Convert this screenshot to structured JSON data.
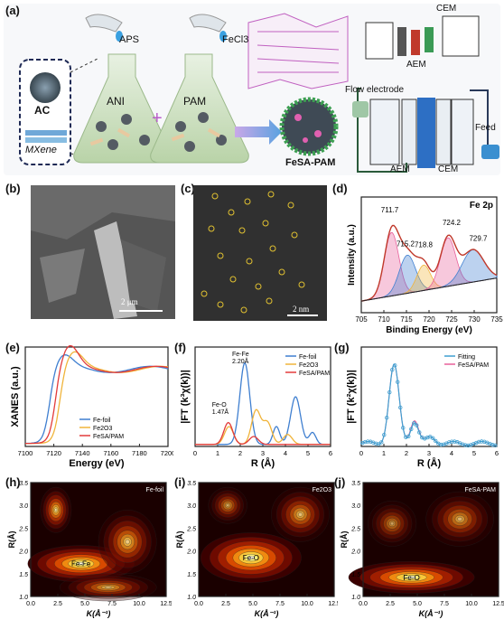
{
  "panels": {
    "a": "(a)",
    "b": "(b)",
    "c": "(c)",
    "d": "(d)",
    "e": "(e)",
    "f": "(f)",
    "g": "(g)",
    "h": "(h)",
    "i": "(i)",
    "j": "(j)"
  },
  "schematic": {
    "aps": "APS",
    "fecl3": "FeCl3",
    "ac": "AC",
    "mxene": "MXene",
    "ani": "ANI",
    "plus": "+",
    "pam": "PAM",
    "product": "FeSA-PAM",
    "cem_top": "CEM",
    "aem_top": "AEM",
    "flow_electrode": "Flow electrode",
    "feed": "Feed",
    "aem_bottom": "AEM",
    "cem_bottom": "CEM"
  },
  "sem_b": {
    "scale": "2 μm"
  },
  "haadf_c": {
    "scale": "2 nm"
  },
  "colors": {
    "red": "#e23b3b",
    "blue": "#3f7fd0",
    "orange": "#f0b43a",
    "pink": "#e8609b"
  },
  "chart_data": [
    {
      "id": "d",
      "type": "line",
      "title": "Fe 2p",
      "xlabel": "Binding Energy (eV)",
      "ylabel": "Intensity (a.u.)",
      "xlim": [
        735,
        705
      ],
      "xticks": [
        "705",
        "710",
        "715",
        "720",
        "725",
        "730",
        "735"
      ],
      "peak_labels": [
        {
          "text": "711.7",
          "x": 711.7
        },
        {
          "text": "715.2",
          "x": 715.2
        },
        {
          "text": "718.8",
          "x": 718.8
        },
        {
          "text": "724.2",
          "x": 724.2
        },
        {
          "text": "729.7",
          "x": 729.7
        }
      ]
    },
    {
      "id": "e",
      "type": "line",
      "xlabel": "Energy (eV)",
      "ylabel": "XANES (a.u.)",
      "xlim": [
        7100,
        7200
      ],
      "xticks": [
        "7100",
        "7120",
        "7140",
        "7160",
        "7180",
        "7200"
      ],
      "series": [
        {
          "name": "Fe-foil",
          "color": "#3f7fd0"
        },
        {
          "name": "Fe2O3",
          "color": "#f0b43a"
        },
        {
          "name": "FeSA/PAM",
          "color": "#e23b3b"
        }
      ]
    },
    {
      "id": "f",
      "type": "line",
      "xlabel": "R (Å)",
      "ylabel": "|FT (k³χ(k))|",
      "xlim": [
        0,
        6
      ],
      "xticks": [
        "0",
        "1",
        "2",
        "3",
        "4",
        "5",
        "6"
      ],
      "annotations": [
        {
          "text": "Fe-Fe",
          "x": 2.2
        },
        {
          "text": "2.20Å",
          "x": 2.2
        },
        {
          "text": "Fe-O",
          "x": 1.47
        },
        {
          "text": "1.47Å",
          "x": 1.47
        }
      ],
      "series": [
        {
          "name": "Fe-foil",
          "color": "#3f7fd0"
        },
        {
          "name": "Fe2O3",
          "color": "#f0b43a"
        },
        {
          "name": "FeSA/PAM",
          "color": "#e23b3b"
        }
      ]
    },
    {
      "id": "g",
      "type": "line",
      "xlabel": "R (Å)",
      "ylabel": "|FT (k²χ(k))|",
      "xlim": [
        0,
        6
      ],
      "xticks": [
        "0",
        "1",
        "2",
        "3",
        "4",
        "5",
        "6"
      ],
      "series": [
        {
          "name": "Fitting",
          "color": "#3f9fd0"
        },
        {
          "name": "FeSA/PAM",
          "color": "#e8609b"
        }
      ]
    },
    {
      "id": "h",
      "type": "heatmap",
      "title": "Fe-foil",
      "feature": "Fe-Fe",
      "xlabel": "K(Å⁻¹)",
      "ylabel": "R(Å)",
      "xticks": [
        "0.0",
        "2.5",
        "5.0",
        "7.5",
        "10.0",
        "12.5"
      ],
      "yticks": [
        "1.0",
        "1.5",
        "2.0",
        "2.5",
        "3.0",
        "3.5"
      ]
    },
    {
      "id": "i",
      "type": "heatmap",
      "title": "Fe2O3",
      "feature": "Fe-O",
      "xlabel": "K(Å⁻¹)",
      "ylabel": "R(Å)",
      "xticks": [
        "0.0",
        "2.5",
        "5.0",
        "7.5",
        "10.0",
        "12.5"
      ],
      "yticks": [
        "1.0",
        "1.5",
        "2.0",
        "2.5",
        "3.0",
        "3.5"
      ]
    },
    {
      "id": "j",
      "type": "heatmap",
      "title": "FeSA-PAM",
      "feature": "Fe-O",
      "xlabel": "K(Å⁻¹)",
      "ylabel": "R(Å)",
      "xticks": [
        "0.0",
        "2.5",
        "5.0",
        "7.5",
        "10.0",
        "12.5"
      ],
      "yticks": [
        "1.0",
        "1.5",
        "2.0",
        "2.5",
        "3.0",
        "3.5"
      ]
    }
  ]
}
